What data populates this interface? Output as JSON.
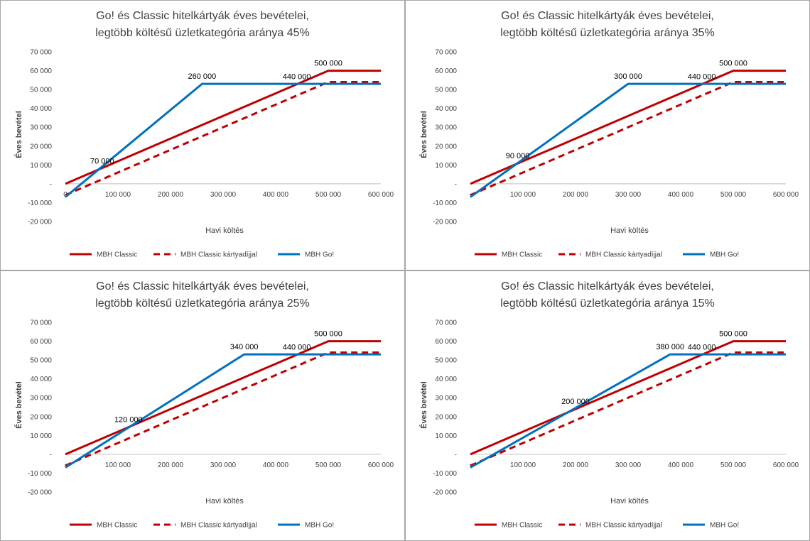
{
  "colors": {
    "classic": "#c00000",
    "go": "#0070c0",
    "axis": "#bfbfbf",
    "text": "#404040"
  },
  "chart_data": [
    {
      "type": "line",
      "title": [
        "Go! és Classic hitelkártyák éves bevételei,",
        "legtöbb költésű üzletkategória aránya 45%"
      ],
      "xlabel": "Havi költés",
      "ylabel": "Éves bevétel",
      "xlim": [
        0,
        600000
      ],
      "ylim": [
        -20000,
        70000
      ],
      "x_ticks": [
        "0",
        "100 000",
        "200 000",
        "300 000",
        "400 000",
        "500 000",
        "600 000"
      ],
      "y_ticks": [
        "70 000",
        "60 000",
        "50 000",
        "40 000",
        "30 000",
        "20 000",
        "10 000",
        "-",
        "-10 000",
        "-20 000"
      ],
      "legend": [
        "MBH Classic",
        "MBH Classic kártyadíjjal",
        "MBH Go!"
      ],
      "series": [
        {
          "name": "MBH Classic",
          "style": "solid",
          "color": "#c00000",
          "points": [
            [
              0,
              0
            ],
            [
              500000,
              60000
            ],
            [
              600000,
              60000
            ]
          ]
        },
        {
          "name": "MBH Classic kártyadíjjal",
          "style": "dashed",
          "color": "#c00000",
          "points": [
            [
              0,
              -6000
            ],
            [
              500000,
              54000
            ],
            [
              600000,
              54000
            ]
          ]
        },
        {
          "name": "MBH Go!",
          "style": "solid",
          "color": "#0070c0",
          "points": [
            [
              0,
              -7000
            ],
            [
              260000,
              53000
            ],
            [
              600000,
              53000
            ]
          ]
        }
      ],
      "annotations": [
        {
          "text": "70 000",
          "x": 70000,
          "y": 8000
        },
        {
          "text": "260 000",
          "x": 260000,
          "y": 53000
        },
        {
          "text": "440 000",
          "x": 440000,
          "y": 52800
        },
        {
          "text": "500 000",
          "x": 500000,
          "y": 60000
        }
      ]
    },
    {
      "type": "line",
      "title": [
        "Go! és Classic hitelkártyák éves bevételei,",
        "legtöbb költésű üzletkategória aránya 35%"
      ],
      "xlabel": "Havi költés",
      "ylabel": "Éves bevétel",
      "xlim": [
        0,
        600000
      ],
      "ylim": [
        -20000,
        70000
      ],
      "x_ticks": [
        "-",
        "100 000",
        "200 000",
        "300 000",
        "400 000",
        "500 000",
        "600 000"
      ],
      "y_ticks": [
        "70 000",
        "60 000",
        "50 000",
        "40 000",
        "30 000",
        "20 000",
        "10 000",
        "-",
        "-10 000",
        "-20 000"
      ],
      "legend": [
        "MBH Classic",
        "MBH Classic kártyadíjjal",
        "MBH Go!"
      ],
      "series": [
        {
          "name": "MBH Classic",
          "style": "solid",
          "color": "#c00000",
          "points": [
            [
              0,
              0
            ],
            [
              500000,
              60000
            ],
            [
              600000,
              60000
            ]
          ]
        },
        {
          "name": "MBH Classic kártyadíjjal",
          "style": "dashed",
          "color": "#c00000",
          "points": [
            [
              0,
              -6000
            ],
            [
              500000,
              54000
            ],
            [
              600000,
              54000
            ]
          ]
        },
        {
          "name": "MBH Go!",
          "style": "solid",
          "color": "#0070c0",
          "points": [
            [
              0,
              -7000
            ],
            [
              300000,
              53000
            ],
            [
              600000,
              53000
            ]
          ]
        }
      ],
      "annotations": [
        {
          "text": "90 000",
          "x": 90000,
          "y": 10800
        },
        {
          "text": "300 000",
          "x": 300000,
          "y": 53000
        },
        {
          "text": "440 000",
          "x": 440000,
          "y": 52800
        },
        {
          "text": "500 000",
          "x": 500000,
          "y": 60000
        }
      ]
    },
    {
      "type": "line",
      "title": [
        "Go! és Classic hitelkártyák éves bevételei,",
        "legtöbb költésű üzletkategória aránya 25%"
      ],
      "xlabel": "Havi költés",
      "ylabel": "Éves bevétel",
      "xlim": [
        0,
        600000
      ],
      "ylim": [
        -20000,
        70000
      ],
      "x_ticks": [
        "-",
        "100 000",
        "200 000",
        "300 000",
        "400 000",
        "500 000",
        "600 000"
      ],
      "y_ticks": [
        "70 000",
        "60 000",
        "50 000",
        "40 000",
        "30 000",
        "20 000",
        "10 000",
        "-",
        "-10 000",
        "-20 000"
      ],
      "legend": [
        "MBH Classic",
        "MBH Classic kártyadíjjal",
        "MBH Go!"
      ],
      "series": [
        {
          "name": "MBH Classic",
          "style": "solid",
          "color": "#c00000",
          "points": [
            [
              0,
              0
            ],
            [
              500000,
              60000
            ],
            [
              600000,
              60000
            ]
          ]
        },
        {
          "name": "MBH Classic kártyadíjjal",
          "style": "dashed",
          "color": "#c00000",
          "points": [
            [
              0,
              -6000
            ],
            [
              500000,
              54000
            ],
            [
              600000,
              54000
            ]
          ]
        },
        {
          "name": "MBH Go!",
          "style": "solid",
          "color": "#0070c0",
          "points": [
            [
              0,
              -7000
            ],
            [
              340000,
              53000
            ],
            [
              600000,
              53000
            ]
          ]
        }
      ],
      "annotations": [
        {
          "text": "120 000",
          "x": 120000,
          "y": 14400
        },
        {
          "text": "340 000",
          "x": 340000,
          "y": 53000
        },
        {
          "text": "440 000",
          "x": 440000,
          "y": 52800
        },
        {
          "text": "500 000",
          "x": 500000,
          "y": 60000
        }
      ]
    },
    {
      "type": "line",
      "title": [
        "Go! és Classic hitelkártyák éves bevételei,",
        "legtöbb költésű üzletkategória aránya 15%"
      ],
      "xlabel": "Havi költés",
      "ylabel": "Éves bevétel",
      "xlim": [
        0,
        600000
      ],
      "ylim": [
        -20000,
        70000
      ],
      "x_ticks": [
        "-",
        "100 000",
        "200 000",
        "300 000",
        "400 000",
        "500 000",
        "600 000"
      ],
      "y_ticks": [
        "70 000",
        "60 000",
        "50 000",
        "40 000",
        "30 000",
        "20 000",
        "10 000",
        "-",
        "-10 000",
        "-20 000"
      ],
      "legend": [
        "MBH Classic",
        "MBH Classic kártyadíjjal",
        "MBH Go!"
      ],
      "series": [
        {
          "name": "MBH Classic",
          "style": "solid",
          "color": "#c00000",
          "points": [
            [
              0,
              0
            ],
            [
              500000,
              60000
            ],
            [
              600000,
              60000
            ]
          ]
        },
        {
          "name": "MBH Classic kártyadíjjal",
          "style": "dashed",
          "color": "#c00000",
          "points": [
            [
              0,
              -6000
            ],
            [
              500000,
              54000
            ],
            [
              600000,
              54000
            ]
          ]
        },
        {
          "name": "MBH Go!",
          "style": "solid",
          "color": "#0070c0",
          "points": [
            [
              0,
              -7000
            ],
            [
              380000,
              53000
            ],
            [
              600000,
              53000
            ]
          ]
        }
      ],
      "annotations": [
        {
          "text": "200 000",
          "x": 200000,
          "y": 24000
        },
        {
          "text": "380 000",
          "x": 380000,
          "y": 53000
        },
        {
          "text": "440 000",
          "x": 440000,
          "y": 52800
        },
        {
          "text": "500 000",
          "x": 500000,
          "y": 60000
        }
      ]
    }
  ]
}
